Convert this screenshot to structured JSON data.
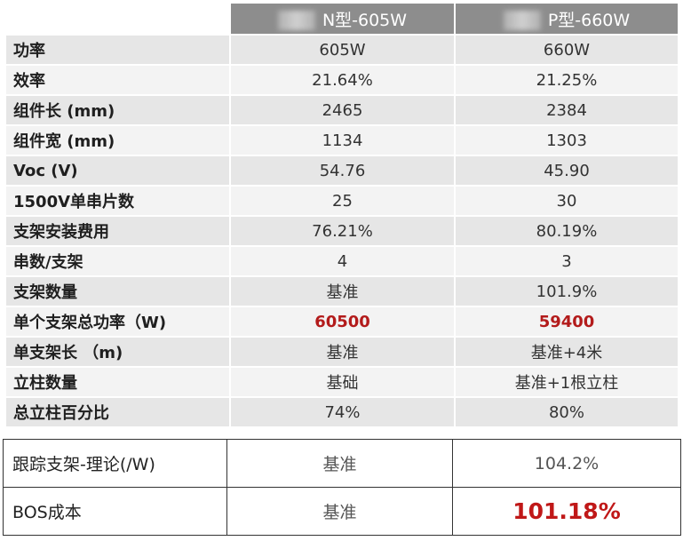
{
  "header": {
    "col1": "N型-605W",
    "col2": "P型-660W"
  },
  "rows": [
    {
      "label": "功率",
      "n": "605W",
      "p": "660W"
    },
    {
      "label": "效率",
      "n": "21.64%",
      "p": "21.25%"
    },
    {
      "label": "组件长 (mm)",
      "n": "2465",
      "p": "2384"
    },
    {
      "label": "组件宽 (mm)",
      "n": "1134",
      "p": "1303"
    },
    {
      "label": "Voc (V)",
      "n": "54.76",
      "p": "45.90"
    },
    {
      "label": "1500V单串片数",
      "n": "25",
      "p": "30"
    },
    {
      "label": "支架安装费用",
      "n": "76.21%",
      "p": "80.19%"
    },
    {
      "label": "串数/支架",
      "n": "4",
      "p": "3"
    },
    {
      "label": "支架数量",
      "n": "基准",
      "p": "101.9%"
    },
    {
      "label": "单个支架总功率（W)",
      "n": "60500",
      "p": "59400"
    },
    {
      "label": "单支架长 （m)",
      "n": "基准",
      "p": "基准+4米"
    },
    {
      "label": "立柱数量",
      "n": "基础",
      "p": "基准+1根立柱"
    },
    {
      "label": "总立柱百分比",
      "n": "74%",
      "p": "80%"
    }
  ],
  "bottom": [
    {
      "label": "跟踪支架-理论(/W)",
      "n": "基准",
      "p": "104.2%"
    },
    {
      "label": "BOS成本",
      "n": "基准",
      "p": "101.18%"
    }
  ],
  "colors": {
    "header_bg": "#8d8d8d",
    "highlight_red": "#b31b1b",
    "row_odd": "#e6e6e6",
    "row_even": "#f3f3f3"
  }
}
